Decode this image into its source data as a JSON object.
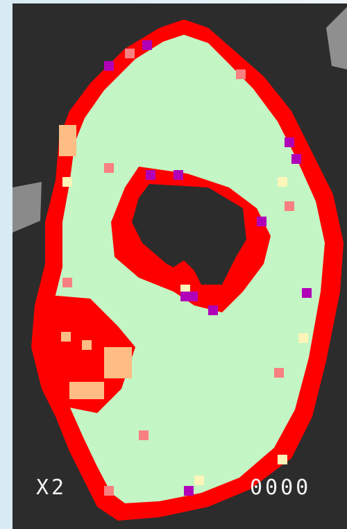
{
  "image_text": {
    "left": "X2",
    "right": "0000"
  }
}
